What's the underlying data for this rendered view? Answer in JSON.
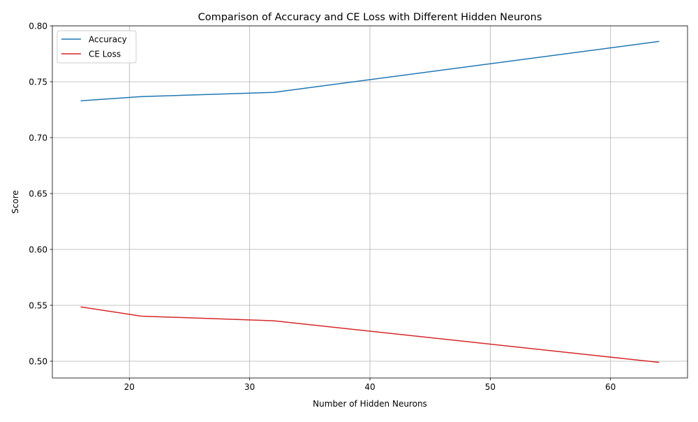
{
  "chart_data": {
    "type": "line",
    "title": "Comparison of Accuracy and CE Loss with Different Hidden Neurons",
    "xlabel": "Number of Hidden Neurons",
    "ylabel": "Score",
    "xlim": [
      13.6,
      66.4
    ],
    "ylim": [
      0.485,
      0.8
    ],
    "xticks": [
      20,
      30,
      40,
      50,
      60
    ],
    "yticks": [
      0.5,
      0.55,
      0.6,
      0.65,
      0.7,
      0.75,
      0.8
    ],
    "x": [
      16,
      21,
      32,
      64
    ],
    "series": [
      {
        "name": "Accuracy",
        "color": "#1f77b4",
        "values": [
          0.733,
          0.7367,
          0.7405,
          0.786
        ]
      },
      {
        "name": "CE Loss",
        "color": "#d62728",
        "values": [
          0.5485,
          0.5403,
          0.5362,
          0.499
        ]
      }
    ],
    "grid": true,
    "legend_position": "top-left"
  }
}
